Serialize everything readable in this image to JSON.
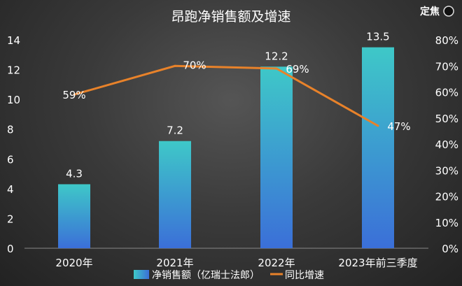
{
  "watermark": "定焦",
  "chart_data": {
    "type": "bar+line",
    "title": "昂跑净销售额及增速",
    "categories": [
      "2020年",
      "2021年",
      "2022年",
      "2023年前三季度"
    ],
    "series": [
      {
        "name": "净销售额（亿瑞士法郎）",
        "type": "bar",
        "axis": "left",
        "values": [
          4.3,
          7.2,
          12.2,
          13.5
        ],
        "labels": [
          "4.3",
          "7.2",
          "12.2",
          "13.5"
        ],
        "color": "#3ec8c8",
        "color2": "#3b6fd8"
      },
      {
        "name": "同比增速",
        "type": "line",
        "axis": "right",
        "values": [
          59,
          70,
          69,
          47
        ],
        "labels": [
          "59%",
          "70%",
          "69%",
          "47%"
        ],
        "color": "#e8822a"
      }
    ],
    "y_left": {
      "range": [
        0,
        14
      ],
      "ticks": [
        "0",
        "2",
        "4",
        "6",
        "8",
        "10",
        "12",
        "14"
      ]
    },
    "y_right": {
      "range": [
        0,
        80
      ],
      "ticks": [
        "0%",
        "10%",
        "20%",
        "30%",
        "40%",
        "50%",
        "60%",
        "70%",
        "80%"
      ]
    },
    "legend": "bottom",
    "grid": false
  }
}
